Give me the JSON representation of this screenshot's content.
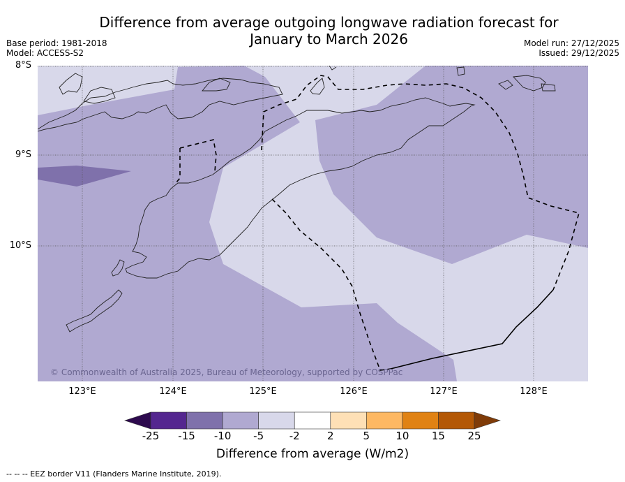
{
  "title_line1": "Difference from average outgoing longwave radiation forecast for",
  "title_line2": "January to March 2026",
  "meta_left": {
    "base_period": "Base period: 1981-2018",
    "model": "Model: ACCESS-S2"
  },
  "meta_right": {
    "model_run": "Model run: 27/12/2025",
    "issued": "Issued: 29/12/2025"
  },
  "map": {
    "lat_labels": [
      "8°S",
      "9°S",
      "10°S"
    ],
    "lon_labels": [
      "123°E",
      "124°E",
      "125°E",
      "126°E",
      "127°E",
      "128°E"
    ],
    "extent": {
      "lon_min": 122.5,
      "lon_max": 128.6,
      "lat_min": -11.5,
      "lat_max": -8.0
    },
    "copyright": "© Commonwealth of Australia 2025, Bureau of Meteorology, supported by COSPPac"
  },
  "colorbar": {
    "ticks": [
      "-25",
      "-15",
      "-10",
      "-5",
      "-2",
      "2",
      "5",
      "10",
      "15",
      "25"
    ],
    "colors": [
      "#2d0a4e",
      "#54278f",
      "#7f71ab",
      "#b0a9d1",
      "#d8d8ea",
      "#ffffff",
      "#fee0b6",
      "#fdb863",
      "#e08214",
      "#b35806",
      "#7f3b08"
    ],
    "label": "Difference from average (W/m2)"
  },
  "footnote": "--  --  -- EEZ border V11 (Flanders Marine Institute, 2019)."
}
